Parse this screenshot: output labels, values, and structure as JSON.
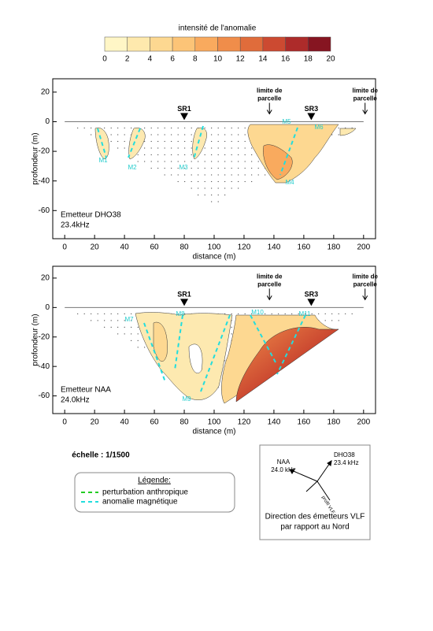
{
  "colorbar": {
    "title": "intensité de l'anomalie",
    "ticks": [
      0,
      2,
      4,
      6,
      8,
      10,
      12,
      14,
      16,
      18,
      20
    ],
    "colors": [
      "#fff6c6",
      "#fee9ad",
      "#fdd891",
      "#fcc477",
      "#f9aa5e",
      "#f08d4a",
      "#e06c3b",
      "#cc4a31",
      "#ad2b2a",
      "#861521"
    ]
  },
  "chart_data": [
    {
      "type": "contour",
      "xlabel": "distance (m)",
      "ylabel": "profondeur (m)",
      "xlim": [
        -8,
        208
      ],
      "ylim": [
        -79,
        29
      ],
      "xticks": [
        0,
        20,
        40,
        60,
        80,
        100,
        120,
        140,
        160,
        180,
        200
      ],
      "yticks": [
        20,
        0,
        -20,
        -40,
        -60
      ],
      "stations": [
        {
          "label": "SR1",
          "x": 80
        },
        {
          "label": "SR3",
          "x": 165
        }
      ],
      "limits": [
        {
          "lines": [
            "limite de",
            "parcelle"
          ],
          "x": 137
        },
        {
          "lines": [
            "limite de",
            "parcelle"
          ],
          "x": 201
        }
      ],
      "emitter": [
        "Emetteur DHO38",
        "23.4kHz"
      ],
      "markers": [
        "M1",
        "M2",
        "M3",
        "M4",
        "M5",
        "M6"
      ]
    },
    {
      "type": "contour",
      "xlabel": "distance (m)",
      "ylabel": "profondeur (m)",
      "xlim": [
        -8,
        208
      ],
      "ylim": [
        -72,
        28
      ],
      "xticks": [
        0,
        20,
        40,
        60,
        80,
        100,
        120,
        140,
        160,
        180,
        200
      ],
      "yticks": [
        20,
        0,
        -20,
        -40,
        -60
      ],
      "stations": [
        {
          "label": "SR1",
          "x": 80
        },
        {
          "label": "SR3",
          "x": 165
        }
      ],
      "limits": [
        {
          "lines": [
            "limite de",
            "parcelle"
          ],
          "x": 137
        },
        {
          "lines": [
            "limite de",
            "parcelle"
          ],
          "x": 201
        }
      ],
      "emitter": [
        "Emetteur NAA",
        "24.0kHz"
      ],
      "markers": [
        "M7",
        "M8",
        "M9",
        "M10",
        "M11"
      ]
    }
  ],
  "scale": "échelle : 1/1500",
  "legend": {
    "title": "Légende:",
    "items": [
      {
        "label": "perturbation anthropique",
        "color": "#22cc22"
      },
      {
        "label": "anomalie magnétique",
        "color": "#22dddd"
      }
    ]
  },
  "compass": {
    "emitters": [
      {
        "name": "NAA",
        "freq": "24.0 kHz"
      },
      {
        "name": "DHO38",
        "freq": "23.4 kHz"
      }
    ],
    "profile": "profil VLF",
    "caption": [
      "Direction des émetteurs VLF",
      "par rapport au Nord"
    ]
  }
}
